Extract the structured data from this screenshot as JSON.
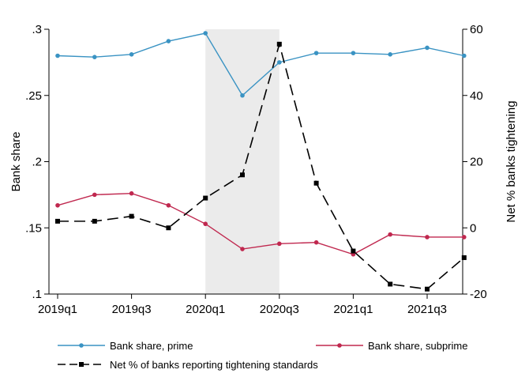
{
  "chart_data": {
    "type": "line",
    "title": "",
    "categories": [
      "2019q1",
      "2019q2",
      "2019q3",
      "2019q4",
      "2020q1",
      "2020q2",
      "2020q3",
      "2020q4",
      "2021q1",
      "2021q2",
      "2021q3",
      "2021q4"
    ],
    "x_tick_labels": [
      "2019q1",
      "2019q3",
      "2020q1",
      "2020q3",
      "2021q1",
      "2021q3"
    ],
    "shaded_region": {
      "from": "2020q1",
      "to": "2020q3",
      "color": "#ebebeb"
    },
    "y_left": {
      "label": "Bank share",
      "ylim": [
        0.1,
        0.3
      ],
      "ticks": [
        0.1,
        0.15,
        0.2,
        0.25,
        0.3
      ],
      "tick_labels": [
        ".1",
        ".15",
        ".2",
        ".25",
        ".3"
      ]
    },
    "y_right": {
      "label": "Net % banks tightening",
      "ylim": [
        -20,
        60
      ],
      "ticks": [
        -20,
        0,
        20,
        40,
        60
      ],
      "tick_labels": [
        "-20",
        "0",
        "20",
        "40",
        "60"
      ]
    },
    "series": [
      {
        "name": "Bank share, prime",
        "axis": "left",
        "color": "#3a93c3",
        "marker": "circle",
        "dash": "solid",
        "values": [
          0.28,
          0.279,
          0.281,
          0.291,
          0.297,
          0.25,
          0.275,
          0.282,
          0.282,
          0.281,
          0.286,
          0.28
        ]
      },
      {
        "name": "Bank share, subprime",
        "axis": "left",
        "color": "#c0284f",
        "marker": "circle",
        "dash": "solid",
        "values": [
          0.167,
          0.175,
          0.176,
          0.167,
          0.153,
          0.134,
          0.138,
          0.139,
          0.13,
          0.145,
          0.143,
          0.143
        ]
      },
      {
        "name": "Net % of banks reporting tightening standards",
        "axis": "right",
        "color": "#000000",
        "marker": "square",
        "dash": "long-dash",
        "values": [
          2,
          2,
          3.5,
          0,
          9,
          16,
          55.5,
          13.5,
          -7,
          -17,
          -18.5,
          -9
        ]
      }
    ],
    "legend": {
      "position": "bottom",
      "columns": 2
    },
    "grid": false
  }
}
